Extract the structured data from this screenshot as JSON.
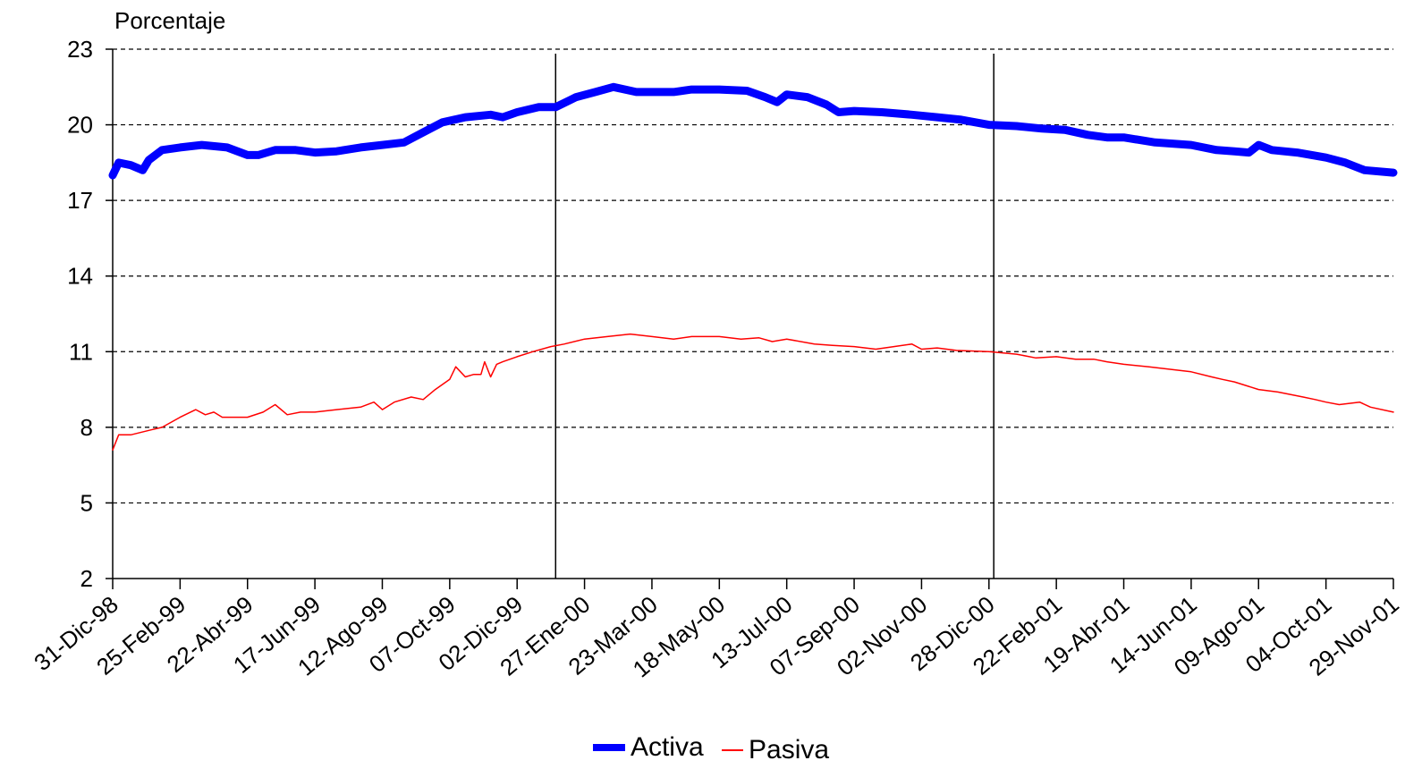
{
  "chart_data": {
    "type": "line",
    "ylabel": "Porcentaje",
    "xlabel": "",
    "ylim": [
      2,
      23
    ],
    "yticks": [
      2,
      5,
      8,
      11,
      14,
      17,
      20,
      23
    ],
    "grid": "dashed horizontal",
    "legend_position": "bottom-center",
    "xticks": [
      "31-Dic-98",
      "25-Feb-99",
      "22-Abr-99",
      "17-Jun-99",
      "12-Ago-99",
      "07-Oct-99",
      "02-Dic-99",
      "27-Ene-00",
      "23-Mar-00",
      "18-May-00",
      "13-Jul-00",
      "07-Sep-00",
      "02-Nov-00",
      "28-Dic-00",
      "22-Feb-01",
      "19-Abr-01",
      "14-Jun-01",
      "09-Ago-01",
      "04-Oct-01",
      "29-Nov-01"
    ],
    "vertical_lines": [
      "2000-01-03",
      "2001-01-01"
    ],
    "series": [
      {
        "name": "Activa",
        "color": "#0000ff",
        "x": [
          "1998-12-31",
          "1999-01-05",
          "1999-01-15",
          "1999-01-25",
          "1999-01-30",
          "1999-02-10",
          "1999-02-25",
          "1999-03-15",
          "1999-04-05",
          "1999-04-22",
          "1999-05-01",
          "1999-05-15",
          "1999-06-01",
          "1999-06-17",
          "1999-07-05",
          "1999-07-25",
          "1999-08-12",
          "1999-08-30",
          "1999-09-15",
          "1999-10-01",
          "1999-10-20",
          "1999-11-10",
          "1999-11-20",
          "1999-12-02",
          "1999-12-20",
          "2000-01-03",
          "2000-01-20",
          "2000-02-05",
          "2000-02-20",
          "2000-03-10",
          "2000-03-23",
          "2000-04-10",
          "2000-04-25",
          "2000-05-18",
          "2000-06-10",
          "2000-06-25",
          "2000-07-05",
          "2000-07-13",
          "2000-07-30",
          "2000-08-15",
          "2000-08-25",
          "2000-09-07",
          "2000-09-30",
          "2000-10-25",
          "2000-11-15",
          "2000-12-05",
          "2000-12-28",
          "2001-01-20",
          "2001-02-10",
          "2001-03-01",
          "2001-03-20",
          "2001-04-05",
          "2001-04-19",
          "2001-05-15",
          "2001-06-14",
          "2001-07-05",
          "2001-07-20",
          "2001-08-01",
          "2001-08-09",
          "2001-08-20",
          "2001-09-10",
          "2001-10-04",
          "2001-10-20",
          "2001-11-05",
          "2001-11-29"
        ],
        "values": [
          18.0,
          18.5,
          18.4,
          18.2,
          18.6,
          19.0,
          19.1,
          19.2,
          19.1,
          18.8,
          18.8,
          19.0,
          19.0,
          18.9,
          18.95,
          19.1,
          19.2,
          19.3,
          19.7,
          20.1,
          20.3,
          20.4,
          20.3,
          20.5,
          20.7,
          20.7,
          21.1,
          21.3,
          21.5,
          21.3,
          21.3,
          21.3,
          21.4,
          21.4,
          21.35,
          21.1,
          20.9,
          21.2,
          21.1,
          20.8,
          20.5,
          20.55,
          20.5,
          20.4,
          20.3,
          20.2,
          20.0,
          19.95,
          19.85,
          19.8,
          19.6,
          19.5,
          19.5,
          19.3,
          19.2,
          19.0,
          18.95,
          18.9,
          19.2,
          19.0,
          18.9,
          18.7,
          18.5,
          18.2,
          18.1
        ]
      },
      {
        "name": "Pasiva",
        "color": "#ff0000",
        "x": [
          "1998-12-31",
          "1999-01-05",
          "1999-01-15",
          "1999-02-01",
          "1999-02-10",
          "1999-02-25",
          "1999-03-10",
          "1999-03-18",
          "1999-03-25",
          "1999-04-01",
          "1999-04-22",
          "1999-05-05",
          "1999-05-15",
          "1999-05-25",
          "1999-06-05",
          "1999-06-17",
          "1999-07-05",
          "1999-07-25",
          "1999-08-05",
          "1999-08-12",
          "1999-08-22",
          "1999-09-05",
          "1999-09-15",
          "1999-09-25",
          "1999-10-07",
          "1999-10-12",
          "1999-10-20",
          "1999-10-27",
          "1999-11-02",
          "1999-11-05",
          "1999-11-10",
          "1999-11-15",
          "1999-11-20",
          "1999-12-02",
          "1999-12-15",
          "1999-12-30",
          "2000-01-10",
          "2000-01-27",
          "2000-02-15",
          "2000-03-05",
          "2000-03-23",
          "2000-04-10",
          "2000-04-25",
          "2000-05-18",
          "2000-06-05",
          "2000-06-20",
          "2000-07-01",
          "2000-07-13",
          "2000-08-05",
          "2000-08-20",
          "2000-09-07",
          "2000-09-25",
          "2000-10-10",
          "2000-10-25",
          "2000-11-02",
          "2000-11-15",
          "2000-12-01",
          "2000-12-28",
          "2001-01-20",
          "2001-02-05",
          "2001-02-22",
          "2001-03-10",
          "2001-03-25",
          "2001-04-05",
          "2001-04-19",
          "2001-05-10",
          "2001-06-14",
          "2001-07-01",
          "2001-07-10",
          "2001-07-20",
          "2001-08-09",
          "2001-08-25",
          "2001-09-15",
          "2001-09-25",
          "2001-10-04",
          "2001-10-15",
          "2001-11-01",
          "2001-11-10",
          "2001-11-29"
        ],
        "values": [
          7.1,
          7.7,
          7.7,
          7.9,
          8.0,
          8.4,
          8.7,
          8.5,
          8.6,
          8.4,
          8.4,
          8.6,
          8.9,
          8.5,
          8.6,
          8.6,
          8.7,
          8.8,
          9.0,
          8.7,
          9.0,
          9.2,
          9.1,
          9.5,
          9.9,
          10.4,
          10.0,
          10.1,
          10.1,
          10.6,
          10.0,
          10.5,
          10.6,
          10.8,
          11.0,
          11.2,
          11.3,
          11.5,
          11.6,
          11.7,
          11.6,
          11.5,
          11.6,
          11.6,
          11.5,
          11.55,
          11.4,
          11.5,
          11.3,
          11.25,
          11.2,
          11.1,
          11.2,
          11.3,
          11.1,
          11.15,
          11.05,
          11.0,
          10.9,
          10.75,
          10.8,
          10.7,
          10.7,
          10.6,
          10.5,
          10.4,
          10.2,
          10.0,
          9.9,
          9.8,
          9.5,
          9.4,
          9.2,
          9.1,
          9.0,
          8.9,
          9.0,
          8.8,
          8.6
        ]
      }
    ]
  }
}
